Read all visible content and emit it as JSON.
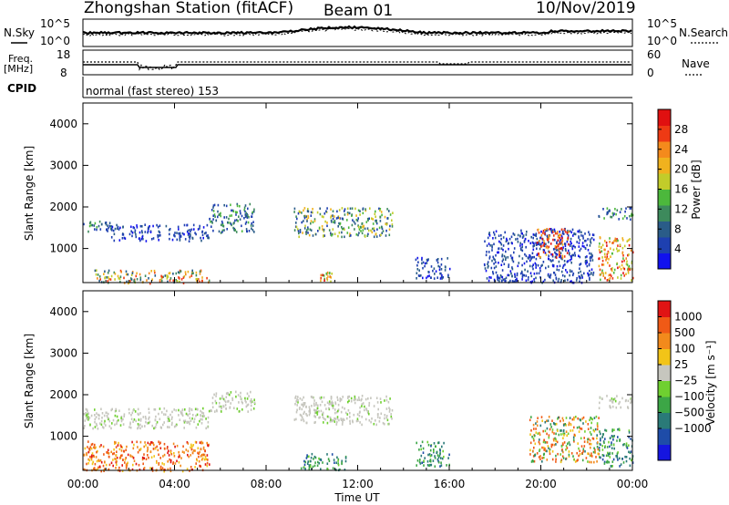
{
  "header": {
    "station": "Zhongshan Station (fitACF)",
    "beam": "Beam 01",
    "date": "10/Nov/2019"
  },
  "panels": {
    "nsky": {
      "left_label": "N.Sky",
      "left_ticks": [
        "10^5",
        "10^0"
      ],
      "right_ticks": [
        "10^5",
        "10^0"
      ],
      "right_label": "N.Search"
    },
    "freq": {
      "left_label_top": "Freq.",
      "left_label_unit": "[MHz]",
      "left_ticks": [
        "18",
        "8"
      ],
      "right_ticks": [
        "60",
        "0"
      ],
      "right_label": "Nave"
    },
    "cpid": {
      "label": "CPID",
      "mode_text": "normal (fast stereo) 153"
    }
  },
  "chart_data": [
    {
      "type": "heatmap",
      "name": "power",
      "ylabel": "Slant Range [km]",
      "ylim": [
        180,
        4500
      ],
      "yticks": [
        1000,
        2000,
        3000,
        4000
      ],
      "xlim": [
        0,
        24
      ],
      "colorbar": {
        "label": "Power [dB]",
        "range": [
          0,
          32
        ],
        "ticks": [
          "4",
          "8",
          "12",
          "16",
          "20",
          "24",
          "28"
        ],
        "colors": [
          "#1111ee",
          "#1e40b0",
          "#2a5c88",
          "#3d8a5c",
          "#4cb83c",
          "#c2cc2a",
          "#f0b21e",
          "#f48a1c",
          "#ee3a14",
          "#e01010"
        ]
      },
      "echo_regions": [
        {
          "t": [
            0.0,
            1.2
          ],
          "r": [
            1400,
            1700
          ],
          "level": "low-mid"
        },
        {
          "t": [
            1.2,
            5.5
          ],
          "r": [
            1200,
            1600
          ],
          "level": "low"
        },
        {
          "t": [
            0.5,
            5.5
          ],
          "r": [
            180,
            500
          ],
          "level": "mid-high"
        },
        {
          "t": [
            5.5,
            7.5
          ],
          "r": [
            1400,
            2100
          ],
          "level": "low-mid"
        },
        {
          "t": [
            9.2,
            13.5
          ],
          "r": [
            1300,
            2000
          ],
          "level": "mid"
        },
        {
          "t": [
            10.3,
            10.9
          ],
          "r": [
            200,
            450
          ],
          "level": "high"
        },
        {
          "t": [
            14.5,
            16.0
          ],
          "r": [
            300,
            800
          ],
          "level": "low"
        },
        {
          "t": [
            17.5,
            22.3
          ],
          "r": [
            200,
            1500
          ],
          "level": "low"
        },
        {
          "t": [
            19.8,
            21.2
          ],
          "r": [
            800,
            1500
          ],
          "level": "very-high"
        },
        {
          "t": [
            22.5,
            24.0
          ],
          "r": [
            1700,
            2000
          ],
          "level": "low-mid"
        },
        {
          "t": [
            22.5,
            24.0
          ],
          "r": [
            250,
            1300
          ],
          "level": "high"
        }
      ]
    },
    {
      "type": "heatmap",
      "name": "velocity",
      "ylabel": "Slant Range [km]",
      "ylim": [
        180,
        4500
      ],
      "yticks": [
        1000,
        2000,
        3000,
        4000
      ],
      "xlim": [
        0,
        24
      ],
      "xticks": [
        "00:00",
        "04:00",
        "08:00",
        "12:00",
        "16:00",
        "20:00",
        "00:00"
      ],
      "xlabel": "Time UT",
      "colorbar": {
        "label": "Velocity [m s⁻¹]",
        "ticks": [
          "1000",
          "500",
          "100",
          "25",
          "−25",
          "−100",
          "−500",
          "−1000"
        ],
        "colors": [
          "#1515e0",
          "#1e4ca8",
          "#2a7a78",
          "#3ca646",
          "#6fd030",
          "#c6c6be",
          "#f2c418",
          "#f28a1c",
          "#f05a16",
          "#e01414"
        ]
      },
      "echo_regions": [
        {
          "t": [
            0.0,
            5.5
          ],
          "r": [
            1200,
            1700
          ],
          "sense": "ground-scatter"
        },
        {
          "t": [
            0.0,
            5.5
          ],
          "r": [
            180,
            900
          ],
          "sense": "away"
        },
        {
          "t": [
            5.5,
            7.5
          ],
          "r": [
            1600,
            2100
          ],
          "sense": "ground-scatter"
        },
        {
          "t": [
            9.2,
            13.5
          ],
          "r": [
            1300,
            2000
          ],
          "sense": "ground-scatter"
        },
        {
          "t": [
            9.5,
            11.5
          ],
          "r": [
            200,
            600
          ],
          "sense": "toward"
        },
        {
          "t": [
            14.5,
            16.0
          ],
          "r": [
            300,
            900
          ],
          "sense": "toward"
        },
        {
          "t": [
            19.5,
            22.5
          ],
          "r": [
            400,
            1500
          ],
          "sense": "mixed"
        },
        {
          "t": [
            22.5,
            24.0
          ],
          "r": [
            1700,
            2000
          ],
          "sense": "ground-scatter"
        },
        {
          "t": [
            22.5,
            24.0
          ],
          "r": [
            300,
            1200
          ],
          "sense": "toward"
        }
      ]
    }
  ]
}
